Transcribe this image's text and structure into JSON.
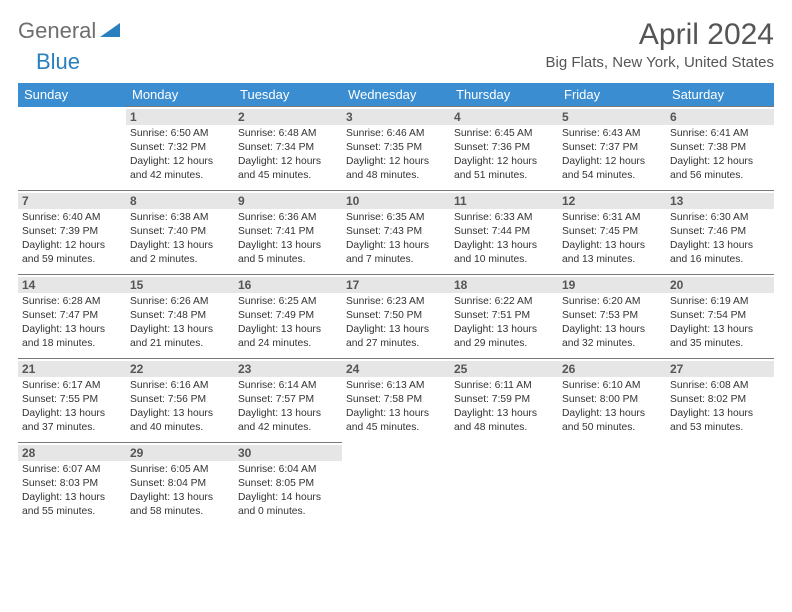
{
  "logo": {
    "text1": "General",
    "text2": "Blue"
  },
  "title": "April 2024",
  "subtitle": "Big Flats, New York, United States",
  "colors": {
    "header_bg": "#3a8dd0",
    "header_text": "#ffffff",
    "daynum_bg": "#e6e6e6",
    "logo_gray": "#6e6e6e",
    "logo_blue": "#2a7fbf",
    "border": "#7a7a7a"
  },
  "weekdays": [
    "Sunday",
    "Monday",
    "Tuesday",
    "Wednesday",
    "Thursday",
    "Friday",
    "Saturday"
  ],
  "weeks": [
    [
      null,
      {
        "n": "1",
        "sr": "6:50 AM",
        "ss": "7:32 PM",
        "dl": "12 hours and 42 minutes."
      },
      {
        "n": "2",
        "sr": "6:48 AM",
        "ss": "7:34 PM",
        "dl": "12 hours and 45 minutes."
      },
      {
        "n": "3",
        "sr": "6:46 AM",
        "ss": "7:35 PM",
        "dl": "12 hours and 48 minutes."
      },
      {
        "n": "4",
        "sr": "6:45 AM",
        "ss": "7:36 PM",
        "dl": "12 hours and 51 minutes."
      },
      {
        "n": "5",
        "sr": "6:43 AM",
        "ss": "7:37 PM",
        "dl": "12 hours and 54 minutes."
      },
      {
        "n": "6",
        "sr": "6:41 AM",
        "ss": "7:38 PM",
        "dl": "12 hours and 56 minutes."
      }
    ],
    [
      {
        "n": "7",
        "sr": "6:40 AM",
        "ss": "7:39 PM",
        "dl": "12 hours and 59 minutes."
      },
      {
        "n": "8",
        "sr": "6:38 AM",
        "ss": "7:40 PM",
        "dl": "13 hours and 2 minutes."
      },
      {
        "n": "9",
        "sr": "6:36 AM",
        "ss": "7:41 PM",
        "dl": "13 hours and 5 minutes."
      },
      {
        "n": "10",
        "sr": "6:35 AM",
        "ss": "7:43 PM",
        "dl": "13 hours and 7 minutes."
      },
      {
        "n": "11",
        "sr": "6:33 AM",
        "ss": "7:44 PM",
        "dl": "13 hours and 10 minutes."
      },
      {
        "n": "12",
        "sr": "6:31 AM",
        "ss": "7:45 PM",
        "dl": "13 hours and 13 minutes."
      },
      {
        "n": "13",
        "sr": "6:30 AM",
        "ss": "7:46 PM",
        "dl": "13 hours and 16 minutes."
      }
    ],
    [
      {
        "n": "14",
        "sr": "6:28 AM",
        "ss": "7:47 PM",
        "dl": "13 hours and 18 minutes."
      },
      {
        "n": "15",
        "sr": "6:26 AM",
        "ss": "7:48 PM",
        "dl": "13 hours and 21 minutes."
      },
      {
        "n": "16",
        "sr": "6:25 AM",
        "ss": "7:49 PM",
        "dl": "13 hours and 24 minutes."
      },
      {
        "n": "17",
        "sr": "6:23 AM",
        "ss": "7:50 PM",
        "dl": "13 hours and 27 minutes."
      },
      {
        "n": "18",
        "sr": "6:22 AM",
        "ss": "7:51 PM",
        "dl": "13 hours and 29 minutes."
      },
      {
        "n": "19",
        "sr": "6:20 AM",
        "ss": "7:53 PM",
        "dl": "13 hours and 32 minutes."
      },
      {
        "n": "20",
        "sr": "6:19 AM",
        "ss": "7:54 PM",
        "dl": "13 hours and 35 minutes."
      }
    ],
    [
      {
        "n": "21",
        "sr": "6:17 AM",
        "ss": "7:55 PM",
        "dl": "13 hours and 37 minutes."
      },
      {
        "n": "22",
        "sr": "6:16 AM",
        "ss": "7:56 PM",
        "dl": "13 hours and 40 minutes."
      },
      {
        "n": "23",
        "sr": "6:14 AM",
        "ss": "7:57 PM",
        "dl": "13 hours and 42 minutes."
      },
      {
        "n": "24",
        "sr": "6:13 AM",
        "ss": "7:58 PM",
        "dl": "13 hours and 45 minutes."
      },
      {
        "n": "25",
        "sr": "6:11 AM",
        "ss": "7:59 PM",
        "dl": "13 hours and 48 minutes."
      },
      {
        "n": "26",
        "sr": "6:10 AM",
        "ss": "8:00 PM",
        "dl": "13 hours and 50 minutes."
      },
      {
        "n": "27",
        "sr": "6:08 AM",
        "ss": "8:02 PM",
        "dl": "13 hours and 53 minutes."
      }
    ],
    [
      {
        "n": "28",
        "sr": "6:07 AM",
        "ss": "8:03 PM",
        "dl": "13 hours and 55 minutes."
      },
      {
        "n": "29",
        "sr": "6:05 AM",
        "ss": "8:04 PM",
        "dl": "13 hours and 58 minutes."
      },
      {
        "n": "30",
        "sr": "6:04 AM",
        "ss": "8:05 PM",
        "dl": "14 hours and 0 minutes."
      },
      null,
      null,
      null,
      null
    ]
  ],
  "labels": {
    "sunrise": "Sunrise:",
    "sunset": "Sunset:",
    "daylight": "Daylight:"
  }
}
